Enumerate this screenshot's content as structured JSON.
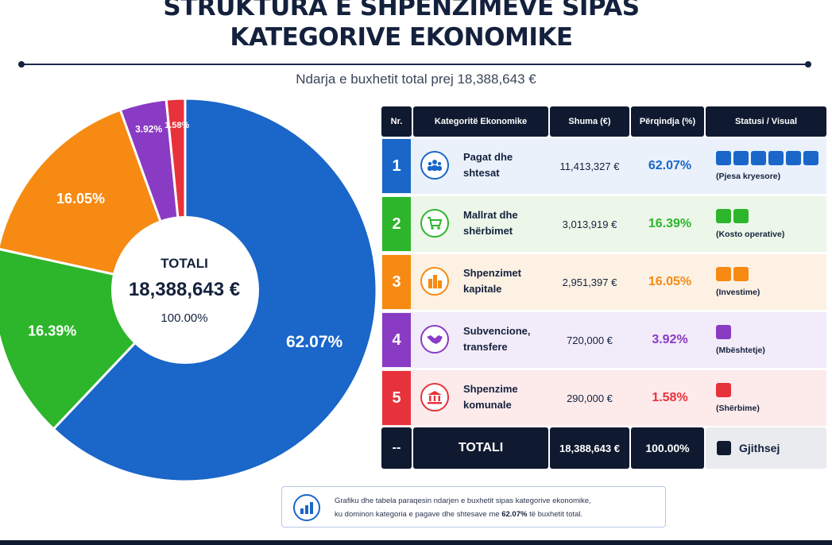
{
  "header": {
    "title_line1": "STRUKTURA E SHPENZIMEVE SIPAS",
    "title_line2": "KATEGORIVE EKONOMIKE",
    "subtitle": "Ndarja e buxhetit total prej 18,388,643 €"
  },
  "center": {
    "title": "TOTALI",
    "value": "18,388,643 €",
    "percent": "100.00%"
  },
  "chart_data": {
    "type": "pie",
    "title": "",
    "categories": [
      "Pagat dhe shtesat",
      "Mallrat dhe shërbimet",
      "Shpenzimet kapitale",
      "Subvencione, transfere",
      "Shpenzime komunale"
    ],
    "values": [
      62.07,
      16.39,
      16.05,
      3.92,
      1.58
    ],
    "labels": [
      "62.07%",
      "16.39%",
      "16.05%",
      "3.92%",
      "1.58%"
    ],
    "colors": [
      "#1a66c9",
      "#2db52c",
      "#f68a12",
      "#8a3bc4",
      "#e8323b"
    ]
  },
  "table": {
    "headers": [
      "Nr.",
      "Kategoritë Ekonomike",
      "Shuma (€)",
      "Përqindja (%)",
      "Statusi / Visual"
    ],
    "rows": [
      {
        "nr": "1",
        "category_line1": "Pagat dhe",
        "category_line2": "shtesat",
        "amount": "11,413,327 €",
        "percent": "62.07%",
        "status": "(Pjesa kryesore)",
        "squares": 6,
        "color": "#1a66c9",
        "bg": "#eaf1fb",
        "icon": "people-icon"
      },
      {
        "nr": "2",
        "category_line1": "Mallrat dhe",
        "category_line2": "shërbimet",
        "amount": "3,013,919 €",
        "percent": "16.39%",
        "status": "(Kosto operative)",
        "squares": 2,
        "color": "#2db52c",
        "bg": "#ecf7e9",
        "icon": "cart-icon"
      },
      {
        "nr": "3",
        "category_line1": "Shpenzimet",
        "category_line2": "kapitale",
        "amount": "2,951,397 €",
        "percent": "16.05%",
        "status": "(Investime)",
        "squares": 2,
        "color": "#f68a12",
        "bg": "#fdf1e3",
        "icon": "buildings-icon"
      },
      {
        "nr": "4",
        "category_line1": "Subvencione,",
        "category_line2": "transfere",
        "amount": "720,000 €",
        "percent": "3.92%",
        "status": "(Mbështetje)",
        "squares": 1,
        "color": "#8a3bc4",
        "bg": "#f2ebf9",
        "icon": "handshake-icon"
      },
      {
        "nr": "5",
        "category_line1": "Shpenzime",
        "category_line2": "komunale",
        "amount": "290,000 €",
        "percent": "1.58%",
        "status": "(Shërbime)",
        "squares": 1,
        "color": "#e8323b",
        "bg": "#fdebec",
        "icon": "institution-icon"
      }
    ],
    "total": {
      "nr": "--",
      "label": "TOTALI",
      "amount": "18,388,643 €",
      "percent": "100.00%",
      "status": "Gjithsej"
    }
  },
  "note": {
    "text1": "Grafiku dhe tabela paraqesin ndarjen e buxhetit sipas kategorive ekonomike,",
    "text2a": "ku dominon kategoria e pagave dhe shtesave me ",
    "text2b": "62.07%",
    "text2c": " të buxhetit total.",
    "icon": "bar-chart-icon"
  }
}
